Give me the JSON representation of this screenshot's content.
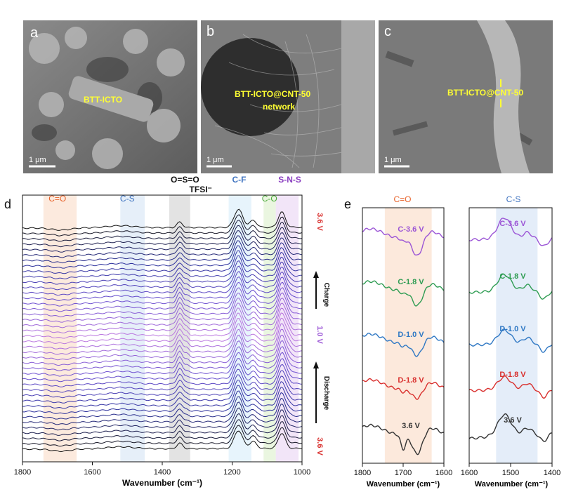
{
  "sem_panels": [
    {
      "letter": "a",
      "label": "BTT-ICTO",
      "scalebar": "1 μm"
    },
    {
      "letter": "b",
      "label_line1": "BTT-ICTO@CNT-50",
      "label_line2": "network",
      "scalebar": "1 μm"
    },
    {
      "letter": "c",
      "label": "BTT-ICTO@CNT-50",
      "scalebar": "1 μm"
    }
  ],
  "chart_data": [
    {
      "panel": "d",
      "type": "line",
      "xlabel": "Wavenumber (cm⁻¹)",
      "xlim": [
        1800,
        1000
      ],
      "x_ticks": [
        1800,
        1600,
        1400,
        1200,
        1000
      ],
      "band_labels": [
        {
          "text": "C=O",
          "range": [
            1740,
            1645
          ],
          "color": "#e8622a"
        },
        {
          "text": "C-S",
          "range": [
            1520,
            1450
          ],
          "color": "#3f73c0"
        },
        {
          "text": "O=S=O",
          "range": [
            1380,
            1320
          ],
          "color": "#111111"
        },
        {
          "text": "TFSI⁻",
          "color": "#111111"
        },
        {
          "text": "C-F",
          "range": [
            1210,
            1145
          ],
          "color": "#3f73c0"
        },
        {
          "text": "C-O",
          "range": [
            1110,
            1075
          ],
          "color": "#4caa3c"
        },
        {
          "text": "S-N-S",
          "range": [
            1075,
            1010
          ],
          "color": "#8a3ec0"
        }
      ],
      "side_labels": {
        "top_voltage": "3.6 V",
        "charge": "Charge",
        "mid_voltage": "1.0 V",
        "discharge": "Discharge",
        "bottom_voltage": "3.6 V"
      },
      "curve_count": 42,
      "color_order_top_to_bottom": [
        "#111111",
        "#2a2f9a",
        "#6a4fd0",
        "#c07ae0"
      ]
    },
    {
      "panel": "e-left",
      "type": "line",
      "title": "C=O",
      "xlabel": "Wavenumber (cm⁻¹)",
      "xlim": [
        1800,
        1600
      ],
      "x_ticks": [
        1800,
        1700,
        1600
      ],
      "series": [
        {
          "name": "C-3.6 V",
          "color": "#9b55d6"
        },
        {
          "name": "C-1.8 V",
          "color": "#2e9c52"
        },
        {
          "name": "D-1.0 V",
          "color": "#2f78c4"
        },
        {
          "name": "D-1.8 V",
          "color": "#d9302e"
        },
        {
          "name": "3.6 V",
          "color": "#333333"
        }
      ]
    },
    {
      "panel": "e-right",
      "type": "line",
      "title": "C-S",
      "xlabel": "Wavenumber (cm⁻¹)",
      "xlim": [
        1600,
        1400
      ],
      "x_ticks": [
        1600,
        1500,
        1400
      ],
      "series": [
        {
          "name": "C-3.6 V",
          "color": "#9b55d6"
        },
        {
          "name": "C-1.8 V",
          "color": "#2e9c52"
        },
        {
          "name": "D-1.0 V",
          "color": "#2f78c4"
        },
        {
          "name": "D-1.8 V",
          "color": "#d9302e"
        },
        {
          "name": "3.6 V",
          "color": "#333333"
        }
      ]
    }
  ],
  "panel_letters": {
    "d": "d",
    "e": "e"
  }
}
